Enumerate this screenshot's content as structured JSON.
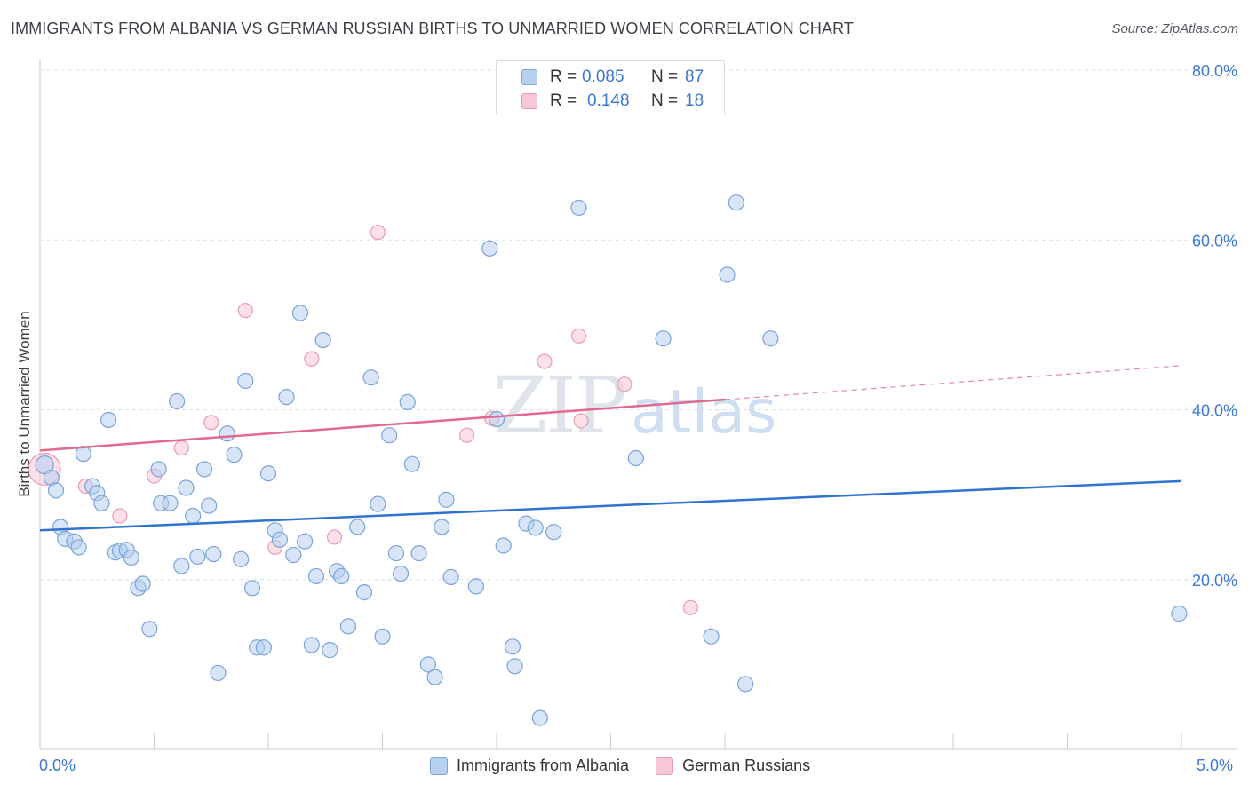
{
  "header": {
    "title": "IMMIGRANTS FROM ALBANIA VS GERMAN RUSSIAN BIRTHS TO UNMARRIED WOMEN CORRELATION CHART",
    "source": "Source: ZipAtlas.com"
  },
  "watermark": {
    "zip": "ZIP",
    "atlas": "atlas"
  },
  "legend": {
    "series1": {
      "r_label": "R =",
      "r_value": "0.085",
      "n_label": "N =",
      "n_value": "87"
    },
    "series2": {
      "r_label": "R =",
      "r_value": "0.148",
      "n_label": "N =",
      "n_value": "18"
    }
  },
  "colors": {
    "blue_fill": "#b7d0f0",
    "blue_stroke": "#7ba3d8",
    "blue_line": "#2f72d0",
    "pink_fill": "#f7c7d6",
    "pink_stroke": "#eb9ab4",
    "pink_line": "#e06891",
    "tick_label": "#3e78d0",
    "grid": "#dcdfe4"
  },
  "chart_data": {
    "type": "scatter",
    "title": "IMMIGRANTS FROM ALBANIA VS GERMAN RUSSIAN BIRTHS TO UNMARRIED WOMEN CORRELATION CHART",
    "xlabel": "",
    "ylabel": "Births to Unmarried Women",
    "xlim": [
      0,
      5
    ],
    "ylim": [
      0,
      80
    ],
    "x_tick_labels": [
      "0.0%",
      "5.0%"
    ],
    "y_ticks": [
      20,
      40,
      60,
      80
    ],
    "y_tick_labels": [
      "20.0%",
      "40.0%",
      "60.0%",
      "80.0%"
    ],
    "grid": true,
    "legend_position": "top-center",
    "series": [
      {
        "name": "Immigrants from Albania",
        "color": "#b7d0f0",
        "R": 0.085,
        "N": 87,
        "trend": {
          "x": [
            0,
            5
          ],
          "y": [
            25.8,
            31.6
          ]
        },
        "points": [
          [
            0.02,
            33.5
          ],
          [
            0.05,
            32.0
          ],
          [
            0.07,
            30.5
          ],
          [
            0.09,
            26.2
          ],
          [
            0.11,
            24.8
          ],
          [
            0.15,
            24.5
          ],
          [
            0.17,
            23.8
          ],
          [
            0.19,
            34.8
          ],
          [
            0.23,
            31.0
          ],
          [
            0.25,
            30.2
          ],
          [
            0.27,
            29.0
          ],
          [
            0.3,
            38.8
          ],
          [
            0.33,
            23.2
          ],
          [
            0.35,
            23.4
          ],
          [
            0.38,
            23.5
          ],
          [
            0.4,
            22.6
          ],
          [
            0.43,
            19.0
          ],
          [
            0.45,
            19.5
          ],
          [
            0.48,
            14.2
          ],
          [
            0.52,
            33.0
          ],
          [
            0.53,
            29.0
          ],
          [
            0.57,
            29.0
          ],
          [
            0.6,
            41.0
          ],
          [
            0.62,
            21.6
          ],
          [
            0.64,
            30.8
          ],
          [
            0.67,
            27.5
          ],
          [
            0.69,
            22.7
          ],
          [
            0.72,
            33.0
          ],
          [
            0.74,
            28.7
          ],
          [
            0.76,
            23.0
          ],
          [
            0.78,
            9.0
          ],
          [
            0.82,
            37.2
          ],
          [
            0.85,
            34.7
          ],
          [
            0.88,
            22.4
          ],
          [
            0.9,
            43.4
          ],
          [
            0.93,
            19.0
          ],
          [
            0.95,
            12.0
          ],
          [
            0.98,
            12.0
          ],
          [
            1.0,
            32.5
          ],
          [
            1.03,
            25.8
          ],
          [
            1.05,
            24.7
          ],
          [
            1.08,
            41.5
          ],
          [
            1.11,
            22.9
          ],
          [
            1.14,
            51.4
          ],
          [
            1.16,
            24.5
          ],
          [
            1.19,
            12.3
          ],
          [
            1.21,
            20.4
          ],
          [
            1.24,
            48.2
          ],
          [
            1.27,
            11.7
          ],
          [
            1.3,
            21.0
          ],
          [
            1.32,
            20.4
          ],
          [
            1.35,
            14.5
          ],
          [
            1.39,
            26.2
          ],
          [
            1.42,
            18.5
          ],
          [
            1.45,
            43.8
          ],
          [
            1.48,
            28.9
          ],
          [
            1.5,
            13.3
          ],
          [
            1.53,
            37.0
          ],
          [
            1.56,
            23.1
          ],
          [
            1.58,
            20.7
          ],
          [
            1.61,
            40.9
          ],
          [
            1.63,
            33.6
          ],
          [
            1.66,
            23.1
          ],
          [
            1.7,
            10.0
          ],
          [
            1.73,
            8.5
          ],
          [
            1.76,
            26.2
          ],
          [
            1.78,
            29.4
          ],
          [
            1.8,
            20.3
          ],
          [
            1.91,
            19.2
          ],
          [
            1.97,
            59.0
          ],
          [
            2.0,
            38.9
          ],
          [
            2.03,
            24.0
          ],
          [
            2.07,
            12.1
          ],
          [
            2.08,
            9.8
          ],
          [
            2.13,
            26.6
          ],
          [
            2.17,
            26.1
          ],
          [
            2.19,
            3.7
          ],
          [
            2.25,
            25.6
          ],
          [
            2.36,
            63.8
          ],
          [
            2.61,
            34.3
          ],
          [
            2.73,
            48.4
          ],
          [
            2.94,
            13.3
          ],
          [
            3.01,
            55.9
          ],
          [
            3.05,
            64.4
          ],
          [
            3.09,
            7.7
          ],
          [
            3.2,
            48.4
          ],
          [
            4.99,
            16.0
          ]
        ]
      },
      {
        "name": "German Russians",
        "color": "#f7c7d6",
        "R": 0.148,
        "N": 18,
        "trend": {
          "x": [
            0,
            3.0
          ],
          "y": [
            35.2,
            41.2
          ]
        },
        "trend_extension": {
          "x": [
            3.0,
            5.0
          ],
          "y": [
            41.2,
            45.2
          ]
        },
        "points": [
          [
            0.02,
            33.0
          ],
          [
            0.2,
            31.0
          ],
          [
            0.35,
            27.5
          ],
          [
            0.5,
            32.2
          ],
          [
            0.62,
            35.5
          ],
          [
            0.75,
            38.5
          ],
          [
            0.9,
            51.7
          ],
          [
            1.03,
            23.8
          ],
          [
            1.19,
            46.0
          ],
          [
            1.29,
            25.0
          ],
          [
            1.48,
            60.9
          ],
          [
            1.87,
            37.0
          ],
          [
            1.98,
            39.0
          ],
          [
            2.21,
            45.7
          ],
          [
            2.36,
            48.7
          ],
          [
            2.37,
            38.7
          ],
          [
            2.56,
            43.0
          ],
          [
            2.85,
            16.7
          ]
        ]
      }
    ]
  },
  "bottom_legend": {
    "item1": "Immigrants from Albania",
    "item2": "German Russians"
  }
}
